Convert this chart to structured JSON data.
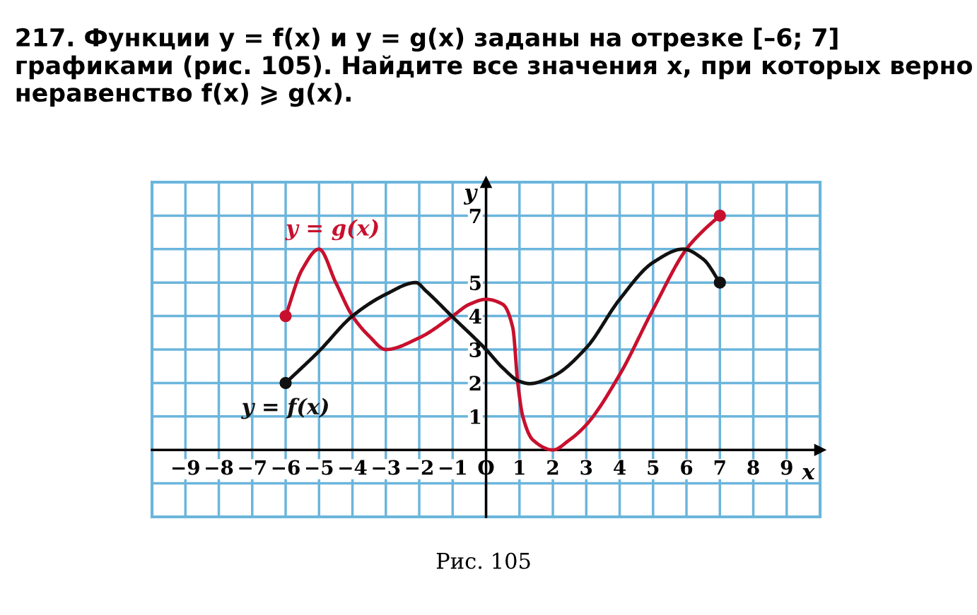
{
  "chart_data": {
    "type": "line",
    "title": "217. Функции y = f(x) и y = g(x) заданы на отрезке [–6; 7] графиками (рис. 105). Найдите все значения x, при которых верно неравенство f(x) ⩾ g(x).",
    "xlabel": "x",
    "ylabel": "y",
    "annotations": [
      "Рис. 105"
    ],
    "series": [
      {
        "name": "y = g(x)",
        "color": "#c8102e",
        "x": [
          -6,
          -5.5,
          -5,
          -4.5,
          -4,
          -3.5,
          -3,
          -2,
          -1,
          -0.5,
          0,
          0.5,
          0.8,
          0.95,
          1.1,
          1.4,
          2,
          2.5,
          3,
          4,
          5,
          6,
          6.5,
          7
        ],
        "values": [
          4,
          5.4,
          6,
          5.0,
          4,
          3.4,
          3,
          3.35,
          4,
          4.35,
          4.5,
          4.35,
          3.65,
          2,
          1,
          0.3,
          0,
          0.3,
          0.75,
          2.25,
          4.2,
          6,
          6.55,
          7
        ]
      },
      {
        "name": "y = f(x)",
        "color": "#111111",
        "x": [
          -6,
          -5,
          -4,
          -3,
          -2.1,
          -1.8,
          -1,
          0,
          0.5,
          1,
          1.3,
          2,
          3,
          4,
          5,
          5.9,
          6.5,
          7
        ],
        "values": [
          2,
          2.95,
          4,
          4.65,
          5,
          4.75,
          3.97,
          3,
          2.45,
          2.05,
          1.98,
          2.2,
          3.05,
          4.5,
          5.6,
          6,
          5.7,
          5
        ]
      },
      {
        "type": "scatter",
        "color": "#c8102e",
        "x": [
          -6,
          7
        ],
        "values": [
          4,
          7
        ]
      },
      {
        "type": "scatter",
        "color": "#111111",
        "x": [
          -6,
          7
        ],
        "values": [
          2,
          5
        ]
      }
    ],
    "xlim": [
      -10,
      10
    ],
    "ylim": [
      -2,
      8
    ],
    "xticks": [
      {
        "value": -9,
        "label": "−9"
      },
      {
        "value": -8,
        "label": "−8"
      },
      {
        "value": -7,
        "label": "−7"
      },
      {
        "value": -6,
        "label": "−6"
      },
      {
        "value": -5,
        "label": "−5"
      },
      {
        "value": -4,
        "label": "−4"
      },
      {
        "value": -3,
        "label": "−3"
      },
      {
        "value": -2,
        "label": "−2"
      },
      {
        "value": -1,
        "label": "−1"
      },
      {
        "value": 0,
        "label": "O"
      },
      1,
      2,
      3,
      4,
      5,
      6,
      7,
      8,
      9
    ],
    "yticks": [
      {
        "value": -1,
        "label": null
      },
      1,
      2,
      3,
      4,
      5,
      {
        "value": 6,
        "label": null
      },
      7
    ],
    "grid": true
  }
}
